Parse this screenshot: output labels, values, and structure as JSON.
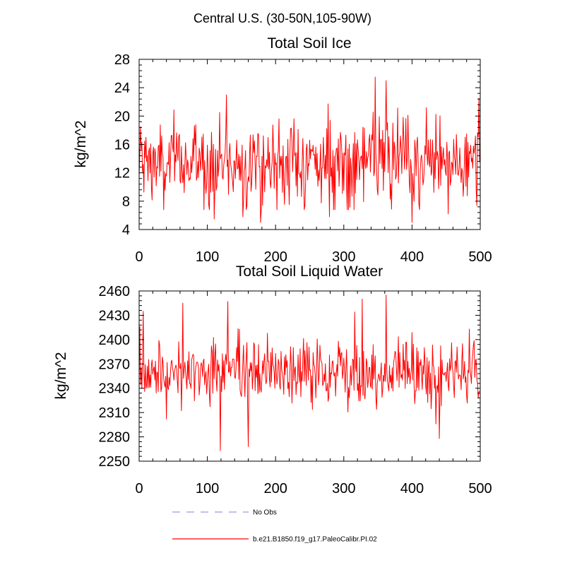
{
  "figure": {
    "title": "Central U.S. (30-50N,105-90W)"
  },
  "legend": {
    "items": [
      {
        "label": "No Obs",
        "color": "#9a9ae0",
        "style": "dashed"
      },
      {
        "label": "b.e21.B1850.f19_g17.PaleoCalibr.PI.02",
        "color": "#ff0000",
        "style": "solid"
      }
    ]
  },
  "chart_data": [
    {
      "type": "line",
      "title": "Total Soil Ice",
      "xlabel": "",
      "ylabel": "kg/m^2",
      "xlim": [
        0,
        500
      ],
      "ylim": [
        4,
        28
      ],
      "xticks": [
        0,
        100,
        200,
        300,
        400,
        500
      ],
      "yticks": [
        4,
        8,
        12,
        16,
        20,
        24,
        28
      ],
      "xtick_labels": [
        "0",
        "100",
        "200",
        "300",
        "400",
        "500"
      ],
      "ytick_labels": [
        "4",
        "8",
        "12",
        "16",
        "20",
        "24",
        "28"
      ],
      "series": [
        {
          "name": "b.e21.B1850.f19_g17.PaleoCalibr.PI.02",
          "color": "#ff0000",
          "n_points": 500,
          "mean": 13.5,
          "spread": 3.0,
          "min": 5.0,
          "max": 25.5,
          "notable_points": [
            {
              "x": 2,
              "y": 18.5
            },
            {
              "x": 36,
              "y": 6.8
            },
            {
              "x": 110,
              "y": 5.5
            },
            {
              "x": 128,
              "y": 23.0
            },
            {
              "x": 152,
              "y": 5.8
            },
            {
              "x": 178,
              "y": 5.0
            },
            {
              "x": 279,
              "y": 5.8
            },
            {
              "x": 346,
              "y": 25.5
            },
            {
              "x": 362,
              "y": 25.0
            },
            {
              "x": 400,
              "y": 5.0
            },
            {
              "x": 453,
              "y": 6.2
            },
            {
              "x": 498,
              "y": 22.5
            }
          ]
        }
      ]
    },
    {
      "type": "line",
      "title": "Total Soil Liquid Water",
      "xlabel": "",
      "ylabel": "kg/m^2",
      "xlim": [
        0,
        500
      ],
      "ylim": [
        2250,
        2460
      ],
      "xticks": [
        0,
        100,
        200,
        300,
        400,
        500
      ],
      "yticks": [
        2250,
        2280,
        2310,
        2340,
        2370,
        2400,
        2430,
        2460
      ],
      "xtick_labels": [
        "0",
        "100",
        "200",
        "300",
        "400",
        "500"
      ],
      "ytick_labels": [
        "2250",
        "2280",
        "2310",
        "2340",
        "2370",
        "2400",
        "2430",
        "2460"
      ],
      "series": [
        {
          "name": "b.e21.B1850.f19_g17.PaleoCalibr.PI.02",
          "color": "#ff0000",
          "n_points": 500,
          "mean": 2360,
          "spread": 20,
          "min": 2263,
          "max": 2455,
          "notable_points": [
            {
              "x": 1,
              "y": 2416
            },
            {
              "x": 6,
              "y": 2435
            },
            {
              "x": 40,
              "y": 2302
            },
            {
              "x": 64,
              "y": 2445
            },
            {
              "x": 119,
              "y": 2263
            },
            {
              "x": 130,
              "y": 2447
            },
            {
              "x": 160,
              "y": 2268
            },
            {
              "x": 316,
              "y": 2434
            },
            {
              "x": 327,
              "y": 2450
            },
            {
              "x": 362,
              "y": 2455
            },
            {
              "x": 435,
              "y": 2296
            },
            {
              "x": 440,
              "y": 2278
            },
            {
              "x": 484,
              "y": 2413
            }
          ]
        }
      ]
    }
  ]
}
